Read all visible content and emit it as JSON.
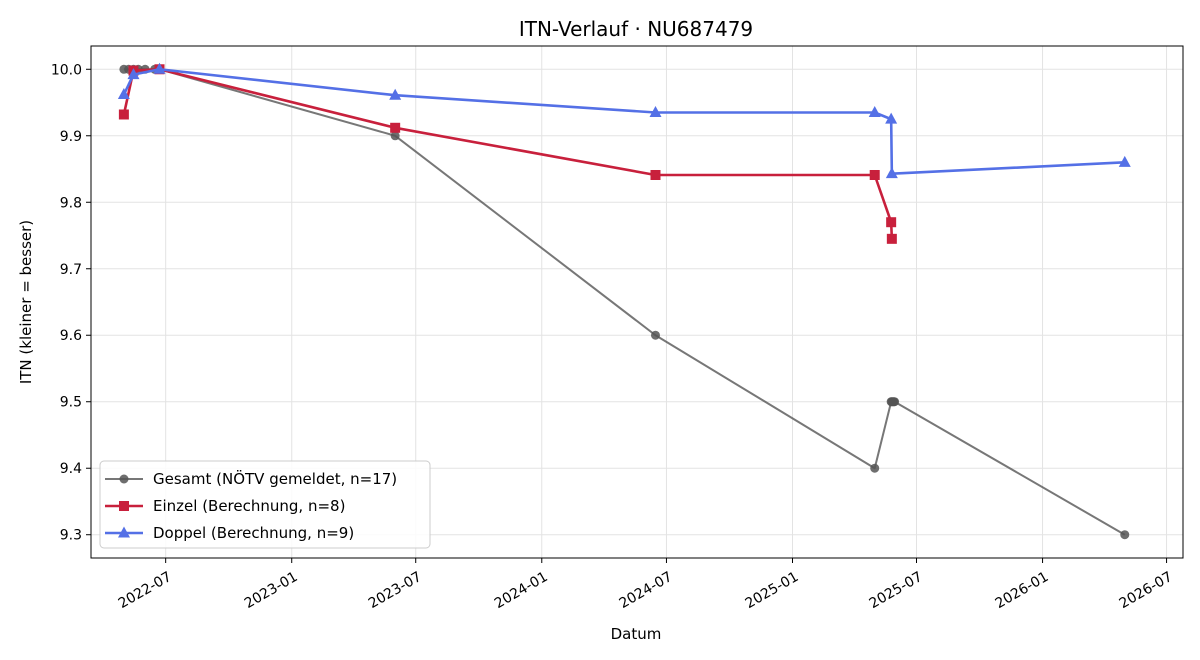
{
  "chart_data": {
    "type": "line",
    "title": "ITN-Verlauf · NU687479",
    "xlabel": "Datum",
    "ylabel": "ITN  (kleiner = besser)",
    "xlim": [
      "2022-03-14",
      "2026-07-25"
    ],
    "ylim": [
      9.265,
      10.035
    ],
    "x_ticks": [
      "2022-07",
      "2023-01",
      "2023-07",
      "2024-01",
      "2024-07",
      "2025-01",
      "2025-07",
      "2026-01",
      "2026-07"
    ],
    "y_ticks": [
      "9.3",
      "9.4",
      "9.5",
      "9.6",
      "9.7",
      "9.8",
      "9.9",
      "10.0"
    ],
    "grid": true,
    "legend_position": "lower-left",
    "series": [
      {
        "name": "Gesamt (NÖTV gemeldet, n=17)",
        "color": "#555555",
        "marker": "circle",
        "points": [
          [
            "2022-05-01",
            10.0
          ],
          [
            "2022-05-08",
            10.0
          ],
          [
            "2022-05-15",
            10.0
          ],
          [
            "2022-05-22",
            10.0
          ],
          [
            "2022-06-01",
            10.0
          ],
          [
            "2022-06-15",
            10.0
          ],
          [
            "2022-06-22",
            10.0
          ],
          [
            "2023-06-01",
            9.9
          ],
          [
            "2024-06-15",
            9.6
          ],
          [
            "2025-05-01",
            9.4
          ],
          [
            "2025-05-25",
            9.5
          ],
          [
            "2025-05-26",
            9.5
          ],
          [
            "2025-05-27",
            9.5
          ],
          [
            "2025-05-28",
            9.5
          ],
          [
            "2025-05-29",
            9.5
          ],
          [
            "2025-05-30",
            9.5
          ],
          [
            "2026-05-01",
            9.3
          ]
        ]
      },
      {
        "name": "Einzel (Berechnung, n=8)",
        "color": "#c8203c",
        "marker": "square",
        "points": [
          [
            "2022-05-01",
            9.932
          ],
          [
            "2022-05-15",
            9.998
          ],
          [
            "2022-06-22",
            10.0
          ],
          [
            "2023-06-01",
            9.912
          ],
          [
            "2024-06-15",
            9.841
          ],
          [
            "2025-05-01",
            9.841
          ],
          [
            "2025-05-25",
            9.77
          ],
          [
            "2025-05-26",
            9.745
          ]
        ]
      },
      {
        "name": "Doppel (Berechnung, n=9)",
        "color": "#5470e6",
        "marker": "triangle",
        "points": [
          [
            "2022-05-01",
            9.962
          ],
          [
            "2022-05-15",
            9.992
          ],
          [
            "2022-06-22",
            10.0
          ],
          [
            "2023-06-01",
            9.961
          ],
          [
            "2024-06-15",
            9.935
          ],
          [
            "2025-05-01",
            9.935
          ],
          [
            "2025-05-25",
            9.925
          ],
          [
            "2025-05-26",
            9.843
          ],
          [
            "2026-05-01",
            9.86
          ]
        ]
      }
    ]
  }
}
